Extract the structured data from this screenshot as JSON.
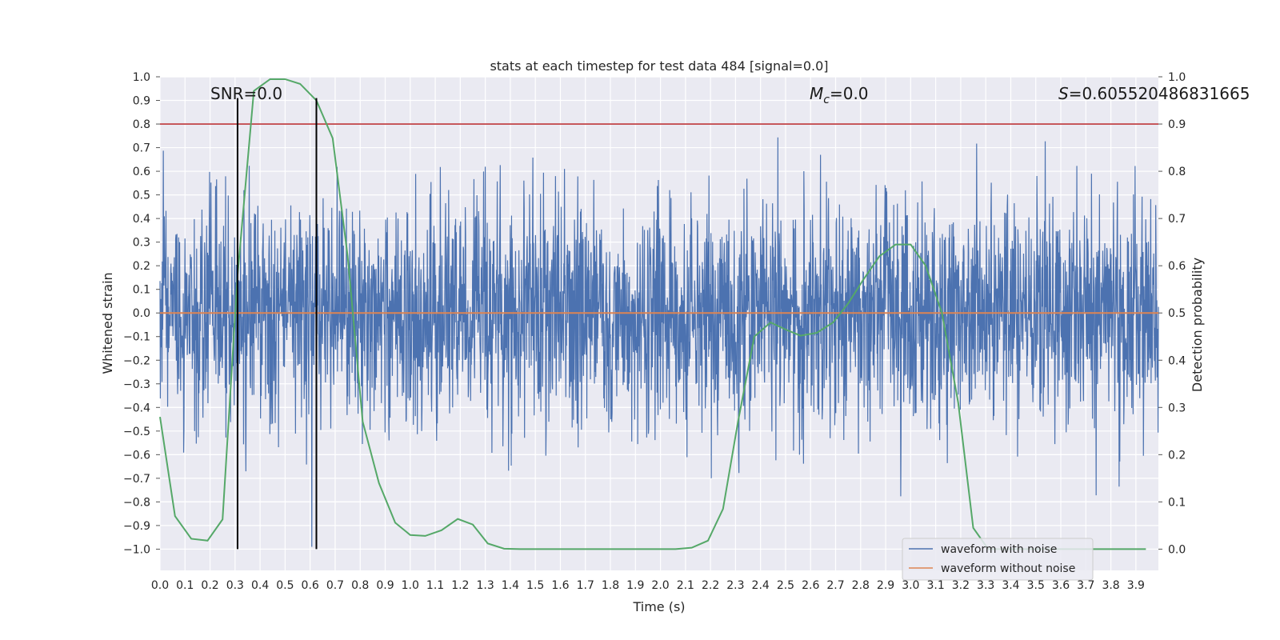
{
  "chart_data": {
    "type": "line",
    "title": "stats at each timestep for test data 484 [signal=0.0]",
    "xlabel": "Time (s)",
    "ylabel": "Whitened strain",
    "y2label": "Detection probability",
    "xlim": [
      0.0,
      3.99
    ],
    "ylim": [
      -1.09,
      1.0
    ],
    "y2lim": [
      -0.045,
      1.0
    ],
    "x_ticks": [
      0.0,
      0.1,
      0.2,
      0.3,
      0.4,
      0.5,
      0.6,
      0.7,
      0.8,
      0.9,
      1.0,
      1.1,
      1.2,
      1.3,
      1.4,
      1.5,
      1.6,
      1.7,
      1.8,
      1.9,
      2.0,
      2.1,
      2.2,
      2.3,
      2.4,
      2.5,
      2.6,
      2.7,
      2.8,
      2.9,
      3.0,
      3.1,
      3.2,
      3.3,
      3.4,
      3.5,
      3.6,
      3.7,
      3.8,
      3.9
    ],
    "y_ticks": [
      1.0,
      0.9,
      0.8,
      0.7,
      0.6,
      0.5,
      0.4,
      0.3,
      0.2,
      0.1,
      0.0,
      -0.1,
      -0.2,
      -0.3,
      -0.4,
      -0.5,
      -0.6,
      -0.7,
      -0.8,
      -0.9,
      -1.0
    ],
    "y2_ticks": [
      1.0,
      0.9,
      0.8,
      0.7,
      0.6,
      0.5,
      0.4,
      0.3,
      0.2,
      0.1,
      0.0
    ],
    "grid": true,
    "legend_position": "lower-right",
    "annotations": {
      "snr": "SNR=0.0",
      "mc_symbol": "M",
      "mc_sub": "c",
      "mc_value": "=0.0",
      "s_symbol": "S",
      "s_value": "=0.605520486831665"
    },
    "series": [
      {
        "name": "waveform with noise",
        "color": "#4c72b0",
        "noise_amplitude": 0.24,
        "seed": 484
      },
      {
        "name": "waveform without noise",
        "color": "#dd8452",
        "values": [
          0.0
        ]
      }
    ],
    "threshold": {
      "axis": "y2",
      "value": 0.9,
      "color": "#c44e52"
    },
    "vlines": {
      "x": [
        0.31,
        0.625
      ],
      "ymin": -1.0,
      "ymax": 0.91,
      "color": "#000000"
    },
    "detection_probability": {
      "axis": "y2",
      "color": "#55a868",
      "x": [
        0.0,
        0.06,
        0.125,
        0.19,
        0.25,
        0.31,
        0.375,
        0.44,
        0.5,
        0.56,
        0.625,
        0.69,
        0.75,
        0.81,
        0.875,
        0.94,
        1.0,
        1.06,
        1.125,
        1.19,
        1.25,
        1.31,
        1.375,
        1.44,
        1.5,
        1.56,
        1.625,
        1.69,
        1.75,
        1.81,
        1.875,
        1.94,
        2.0,
        2.06,
        2.125,
        2.19,
        2.25,
        2.31,
        2.375,
        2.44,
        2.5,
        2.56,
        2.625,
        2.69,
        2.75,
        2.81,
        2.875,
        2.94,
        3.0,
        3.06,
        3.125,
        3.19,
        3.25,
        3.31,
        3.375,
        3.44,
        3.5,
        3.56,
        3.625,
        3.69,
        3.75,
        3.81,
        3.875,
        3.94
      ],
      "y": [
        0.28,
        0.07,
        0.022,
        0.018,
        0.063,
        0.58,
        0.97,
        0.995,
        0.995,
        0.985,
        0.95,
        0.87,
        0.62,
        0.27,
        0.14,
        0.056,
        0.03,
        0.028,
        0.04,
        0.064,
        0.052,
        0.012,
        0.001,
        0.0,
        0.0,
        0.0,
        0.0,
        0.0,
        0.0,
        0.0,
        0.0,
        0.0,
        0.0,
        0.0,
        0.003,
        0.018,
        0.085,
        0.27,
        0.45,
        0.48,
        0.465,
        0.452,
        0.458,
        0.48,
        0.52,
        0.57,
        0.62,
        0.645,
        0.645,
        0.6,
        0.5,
        0.31,
        0.045,
        0.0,
        0.0,
        0.0,
        0.0,
        0.0,
        0.0,
        0.0,
        0.0,
        0.0,
        0.0,
        0.0
      ]
    }
  }
}
